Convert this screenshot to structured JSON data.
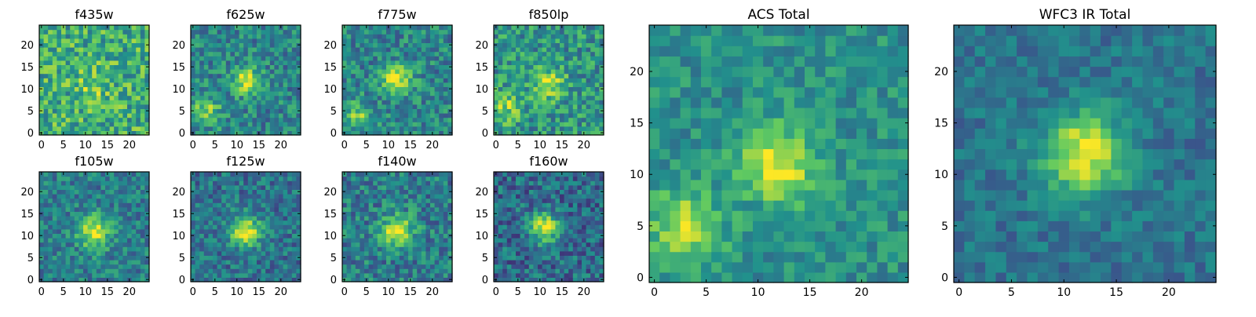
{
  "figure": {
    "type": "heatmap",
    "colormap": [
      "#440154",
      "#3b528b",
      "#21918c",
      "#5ec962",
      "#fde725"
    ]
  },
  "chart_data": [
    {
      "type": "heatmap",
      "title": "f435w",
      "grid_size": 25,
      "xticks": [
        0,
        5,
        10,
        15,
        20
      ],
      "yticks": [
        0,
        5,
        10,
        15,
        20
      ],
      "center": [
        12,
        11
      ],
      "peak": 0.2,
      "sigma": 2.5,
      "secondary": null,
      "background": 0.62,
      "noise": 0.25
    },
    {
      "type": "heatmap",
      "title": "f625w",
      "grid_size": 25,
      "xticks": [
        0,
        5,
        10,
        15,
        20
      ],
      "yticks": [
        0,
        5,
        10,
        15,
        20
      ],
      "center": [
        12,
        12
      ],
      "peak": 0.45,
      "sigma": 2.2,
      "secondary": {
        "center": [
          3,
          5
        ],
        "peak": 0.35,
        "sigma": 2.3
      },
      "background": 0.45,
      "noise": 0.2
    },
    {
      "type": "heatmap",
      "title": "f775w",
      "grid_size": 25,
      "xticks": [
        0,
        5,
        10,
        15,
        20
      ],
      "yticks": [
        0,
        5,
        10,
        15,
        20
      ],
      "center": [
        12,
        12
      ],
      "peak": 0.5,
      "sigma": 2.3,
      "secondary": {
        "center": [
          3,
          4
        ],
        "peak": 0.32,
        "sigma": 2.2
      },
      "background": 0.45,
      "noise": 0.2
    },
    {
      "type": "heatmap",
      "title": "f850lp",
      "grid_size": 25,
      "xticks": [
        0,
        5,
        10,
        15,
        20
      ],
      "yticks": [
        0,
        5,
        10,
        15,
        20
      ],
      "center": [
        12,
        11
      ],
      "peak": 0.38,
      "sigma": 2.5,
      "secondary": {
        "center": [
          2,
          6
        ],
        "peak": 0.3,
        "sigma": 2.5
      },
      "background": 0.52,
      "noise": 0.22
    },
    {
      "type": "heatmap",
      "title": "f105w",
      "grid_size": 25,
      "xticks": [
        0,
        5,
        10,
        15,
        20
      ],
      "yticks": [
        0,
        5,
        10,
        15,
        20
      ],
      "center": [
        12,
        11
      ],
      "peak": 0.55,
      "sigma": 2.6,
      "secondary": null,
      "background": 0.42,
      "noise": 0.18
    },
    {
      "type": "heatmap",
      "title": "f125w",
      "grid_size": 25,
      "xticks": [
        0,
        5,
        10,
        15,
        20
      ],
      "yticks": [
        0,
        5,
        10,
        15,
        20
      ],
      "center": [
        12,
        11
      ],
      "peak": 0.6,
      "sigma": 2.4,
      "secondary": null,
      "background": 0.38,
      "noise": 0.18
    },
    {
      "type": "heatmap",
      "title": "f140w",
      "grid_size": 25,
      "xticks": [
        0,
        5,
        10,
        15,
        20
      ],
      "yticks": [
        0,
        5,
        10,
        15,
        20
      ],
      "center": [
        12,
        11
      ],
      "peak": 0.55,
      "sigma": 2.5,
      "secondary": null,
      "background": 0.42,
      "noise": 0.2
    },
    {
      "type": "heatmap",
      "title": "f160w",
      "grid_size": 25,
      "xticks": [
        0,
        5,
        10,
        15,
        20
      ],
      "yticks": [
        0,
        5,
        10,
        15,
        20
      ],
      "center": [
        11,
        12
      ],
      "peak": 0.6,
      "sigma": 2.3,
      "secondary": null,
      "background": 0.35,
      "noise": 0.2
    },
    {
      "type": "heatmap",
      "title": "ACS Total",
      "grid_size": 25,
      "xticks": [
        0,
        5,
        10,
        15,
        20
      ],
      "yticks": [
        0,
        5,
        10,
        15,
        20
      ],
      "center": [
        12,
        11
      ],
      "peak": 0.48,
      "sigma": 2.5,
      "secondary": {
        "center": [
          3,
          5
        ],
        "peak": 0.38,
        "sigma": 2.4
      },
      "background": 0.5,
      "noise": 0.14
    },
    {
      "type": "heatmap",
      "title": "WFC3 IR Total",
      "grid_size": 25,
      "xticks": [
        0,
        5,
        10,
        15,
        20
      ],
      "yticks": [
        0,
        5,
        10,
        15,
        20
      ],
      "center": [
        12,
        12
      ],
      "peak": 0.6,
      "sigma": 2.8,
      "secondary": null,
      "background": 0.38,
      "noise": 0.12
    }
  ]
}
